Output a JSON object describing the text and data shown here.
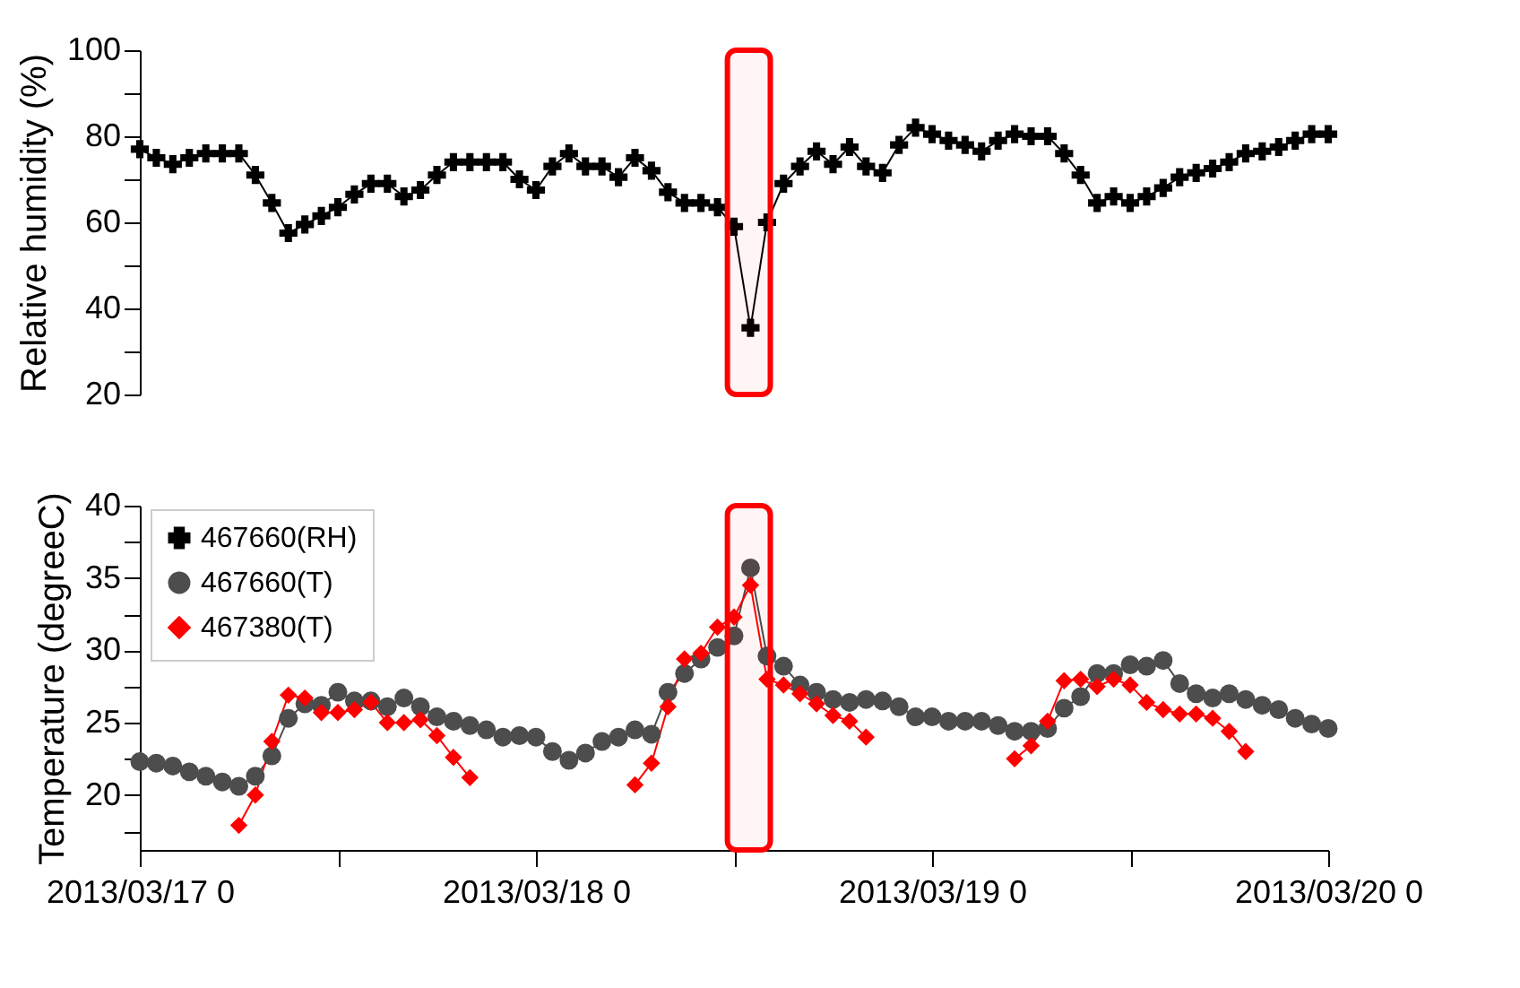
{
  "chart_data": [
    {
      "type": "line",
      "ylabel": "Relative humidity (%)",
      "xlim": [
        "2013-03-17T00:00",
        "2013-03-20T00:00"
      ],
      "ylim": [
        20,
        100
      ],
      "yticks": [
        20,
        {
          "value": 30,
          "label": null
        },
        40,
        {
          "value": 50,
          "label": null
        },
        60,
        {
          "value": 70,
          "label": null
        },
        80,
        {
          "value": 90,
          "label": null
        },
        100
      ],
      "tick_labels": "y",
      "grid": false,
      "legend": "bottom left",
      "x": [
        "2013-03-17T00:00",
        "2013-03-17T01:00",
        "2013-03-17T02:00",
        "2013-03-17T03:00",
        "2013-03-17T04:00",
        "2013-03-17T05:00",
        "2013-03-17T06:00",
        "2013-03-17T07:00",
        "2013-03-17T08:00",
        "2013-03-17T09:00",
        "2013-03-17T10:00",
        "2013-03-17T11:00",
        "2013-03-17T12:00",
        "2013-03-17T13:00",
        "2013-03-17T14:00",
        "2013-03-17T15:00",
        "2013-03-17T16:00",
        "2013-03-17T17:00",
        "2013-03-17T18:00",
        "2013-03-17T19:00",
        "2013-03-17T20:00",
        "2013-03-17T21:00",
        "2013-03-17T22:00",
        "2013-03-17T23:00",
        "2013-03-18T00:00",
        "2013-03-18T01:00",
        "2013-03-18T02:00",
        "2013-03-18T03:00",
        "2013-03-18T04:00",
        "2013-03-18T05:00",
        "2013-03-18T06:00",
        "2013-03-18T07:00",
        "2013-03-18T08:00",
        "2013-03-18T09:00",
        "2013-03-18T10:00",
        "2013-03-18T11:00",
        "2013-03-18T12:00",
        "2013-03-18T13:00",
        "2013-03-18T14:00",
        "2013-03-18T15:00",
        "2013-03-18T16:00",
        "2013-03-18T17:00",
        "2013-03-18T18:00",
        "2013-03-18T19:00",
        "2013-03-18T20:00",
        "2013-03-18T21:00",
        "2013-03-18T22:00",
        "2013-03-18T23:00",
        "2013-03-19T00:00",
        "2013-03-19T01:00",
        "2013-03-19T02:00",
        "2013-03-19T03:00",
        "2013-03-19T04:00",
        "2013-03-19T05:00",
        "2013-03-19T06:00",
        "2013-03-19T07:00",
        "2013-03-19T08:00",
        "2013-03-19T09:00",
        "2013-03-19T10:00",
        "2013-03-19T11:00",
        "2013-03-19T12:00",
        "2013-03-19T13:00",
        "2013-03-19T14:00",
        "2013-03-19T15:00",
        "2013-03-19T16:00",
        "2013-03-19T17:00",
        "2013-03-19T18:00",
        "2013-03-19T19:00",
        "2013-03-19T20:00",
        "2013-03-19T21:00",
        "2013-03-19T22:00",
        "2013-03-19T23:00",
        "2013-03-20T00:00"
      ],
      "series": [
        {
          "name": "467660(RH)",
          "color": "#000000",
          "marker": "cross",
          "values": [
            77,
            75,
            73.5,
            75,
            76,
            76,
            76,
            71,
            64.5,
            57.5,
            59.5,
            61.5,
            63.5,
            66.5,
            69,
            69,
            66,
            67.5,
            71,
            74,
            74,
            74,
            74,
            70,
            67.5,
            73,
            76,
            73,
            73,
            70.5,
            75,
            72,
            67,
            64.5,
            64.5,
            63.5,
            59,
            35.5,
            60,
            69,
            73,
            76.5,
            73.5,
            77.5,
            73,
            71.5,
            78,
            82,
            80.5,
            79,
            78,
            76.5,
            79,
            80.5,
            80,
            80,
            76,
            71,
            64.5,
            66,
            64.5,
            66,
            68,
            70.5,
            71.5,
            72.5,
            74,
            76,
            76.5,
            77.5,
            79,
            80.5,
            80.5
          ]
        }
      ],
      "bands": [
        {
          "axis": "x",
          "from": "2013-03-18T11:36",
          "to": "2013-03-18T14:12",
          "color": "#ff0000"
        }
      ]
    },
    {
      "type": "line",
      "ylabel": "Temperature (degreeC)",
      "xlim": [
        "2013-03-17T00:00",
        "2013-03-20T00:00"
      ],
      "ylim": [
        16.2,
        40
      ],
      "xticks": [
        {
          "value": "2013-03-17T00:00",
          "label": "2013/03/17 0"
        },
        {
          "value": "2013-03-17T12:00",
          "label": null
        },
        {
          "value": "2013-03-18T00:00",
          "label": "2013/03/18 0"
        },
        {
          "value": "2013-03-18T12:00",
          "label": null
        },
        {
          "value": "2013-03-19T00:00",
          "label": "2013/03/19 0"
        },
        {
          "value": "2013-03-19T12:00",
          "label": null
        },
        {
          "value": "2013-03-20T00:00",
          "label": "2013/03/20 0"
        }
      ],
      "yticks": [
        {
          "value": 17.5,
          "label": null
        },
        20,
        {
          "value": 22.5,
          "label": null
        },
        25,
        {
          "value": 27.5,
          "label": null
        },
        30,
        {
          "value": 32.5,
          "label": null
        },
        35,
        {
          "value": 37.5,
          "label": null
        },
        40
      ],
      "grid": false,
      "legend": "top left",
      "x": [
        "2013-03-17T00:00",
        "2013-03-17T01:00",
        "2013-03-17T02:00",
        "2013-03-17T03:00",
        "2013-03-17T04:00",
        "2013-03-17T05:00",
        "2013-03-17T06:00",
        "2013-03-17T07:00",
        "2013-03-17T08:00",
        "2013-03-17T09:00",
        "2013-03-17T10:00",
        "2013-03-17T11:00",
        "2013-03-17T12:00",
        "2013-03-17T13:00",
        "2013-03-17T14:00",
        "2013-03-17T15:00",
        "2013-03-17T16:00",
        "2013-03-17T17:00",
        "2013-03-17T18:00",
        "2013-03-17T19:00",
        "2013-03-17T20:00",
        "2013-03-17T21:00",
        "2013-03-17T22:00",
        "2013-03-17T23:00",
        "2013-03-18T00:00",
        "2013-03-18T01:00",
        "2013-03-18T02:00",
        "2013-03-18T03:00",
        "2013-03-18T04:00",
        "2013-03-18T05:00",
        "2013-03-18T06:00",
        "2013-03-18T07:00",
        "2013-03-18T08:00",
        "2013-03-18T09:00",
        "2013-03-18T10:00",
        "2013-03-18T11:00",
        "2013-03-18T12:00",
        "2013-03-18T13:00",
        "2013-03-18T14:00",
        "2013-03-18T15:00",
        "2013-03-18T16:00",
        "2013-03-18T17:00",
        "2013-03-18T18:00",
        "2013-03-18T19:00",
        "2013-03-18T20:00",
        "2013-03-18T21:00",
        "2013-03-18T22:00",
        "2013-03-18T23:00",
        "2013-03-19T00:00",
        "2013-03-19T01:00",
        "2013-03-19T02:00",
        "2013-03-19T03:00",
        "2013-03-19T04:00",
        "2013-03-19T05:00",
        "2013-03-19T06:00",
        "2013-03-19T07:00",
        "2013-03-19T08:00",
        "2013-03-19T09:00",
        "2013-03-19T10:00",
        "2013-03-19T11:00",
        "2013-03-19T12:00",
        "2013-03-19T13:00",
        "2013-03-19T14:00",
        "2013-03-19T15:00",
        "2013-03-19T16:00",
        "2013-03-19T17:00",
        "2013-03-19T18:00",
        "2013-03-19T19:00",
        "2013-03-19T20:00",
        "2013-03-19T21:00",
        "2013-03-19T22:00",
        "2013-03-19T23:00",
        "2013-03-20T00:00"
      ],
      "series": [
        {
          "name": "467660(T)",
          "color": "#4d4d4d",
          "marker": "circle",
          "values": [
            22.3,
            22.2,
            22,
            21.6,
            21.3,
            20.9,
            20.6,
            21.3,
            22.7,
            25.3,
            26.3,
            26.2,
            27.1,
            26.5,
            26.5,
            26.1,
            26.7,
            26.1,
            25.4,
            25.1,
            24.8,
            24.5,
            24,
            24.1,
            24,
            23,
            22.4,
            22.9,
            23.7,
            24,
            24.5,
            24.2,
            27.1,
            28.4,
            29.4,
            30.2,
            31,
            35.7,
            29.6,
            28.9,
            27.6,
            27.1,
            26.6,
            26.4,
            26.6,
            26.5,
            26.1,
            25.4,
            25.4,
            25.1,
            25.1,
            25.1,
            24.8,
            24.4,
            24.4,
            24.6,
            26,
            26.8,
            28.4,
            28.4,
            29,
            28.9,
            29.3,
            27.7,
            27,
            26.7,
            27,
            26.6,
            26.2,
            25.9,
            25.3,
            24.9,
            24.6
          ]
        },
        {
          "name": "467380(T)",
          "color": "#ff0000",
          "marker": "diamond",
          "values": [
            null,
            null,
            null,
            null,
            null,
            null,
            17.9,
            20,
            23.7,
            26.9,
            26.7,
            25.7,
            25.7,
            25.9,
            26.4,
            25,
            25,
            25.2,
            24.1,
            22.6,
            21.2,
            null,
            null,
            null,
            null,
            null,
            null,
            null,
            null,
            null,
            20.7,
            22.2,
            26.1,
            29.4,
            29.8,
            31.6,
            32.3,
            34.5,
            28,
            27.6,
            27,
            26.3,
            25.5,
            25.1,
            24,
            null,
            null,
            null,
            null,
            null,
            null,
            null,
            null,
            22.5,
            23.4,
            25.1,
            27.9,
            28,
            27.5,
            28,
            27.6,
            26.4,
            25.9,
            25.6,
            25.6,
            25.3,
            24.4,
            23,
            null,
            null,
            null,
            null,
            null
          ]
        }
      ],
      "bands": [
        {
          "axis": "x",
          "from": "2013-03-18T11:36",
          "to": "2013-03-18T14:12",
          "color": "#ff0000"
        }
      ]
    }
  ]
}
